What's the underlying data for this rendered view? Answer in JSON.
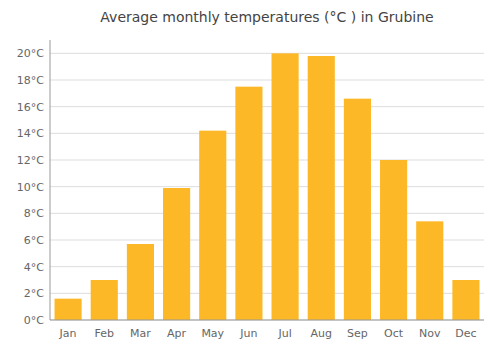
{
  "chart_data": {
    "type": "bar",
    "title": "Average monthly temperatures (°C ) in Grubine",
    "categories": [
      "Jan",
      "Feb",
      "Mar",
      "Apr",
      "May",
      "Jun",
      "Jul",
      "Aug",
      "Sep",
      "Oct",
      "Nov",
      "Dec"
    ],
    "values": [
      1.6,
      3.0,
      5.7,
      9.9,
      14.2,
      17.5,
      20.0,
      19.8,
      16.6,
      12.0,
      7.4,
      3.0
    ],
    "color": "#FDB827",
    "ylim": [
      0,
      21
    ],
    "yticks": [
      {
        "value": 0,
        "label": "0°C"
      },
      {
        "value": 2,
        "label": "2°C"
      },
      {
        "value": 4,
        "label": "4°C"
      },
      {
        "value": 6,
        "label": "6°C"
      },
      {
        "value": 8,
        "label": "8°C"
      },
      {
        "value": 10,
        "label": "10°C"
      },
      {
        "value": 12,
        "label": "12°C"
      },
      {
        "value": 14,
        "label": "14°C"
      },
      {
        "value": 16,
        "label": "16°C"
      },
      {
        "value": 18,
        "label": "18°C"
      },
      {
        "value": 20,
        "label": "20°C"
      }
    ],
    "grid": true
  }
}
